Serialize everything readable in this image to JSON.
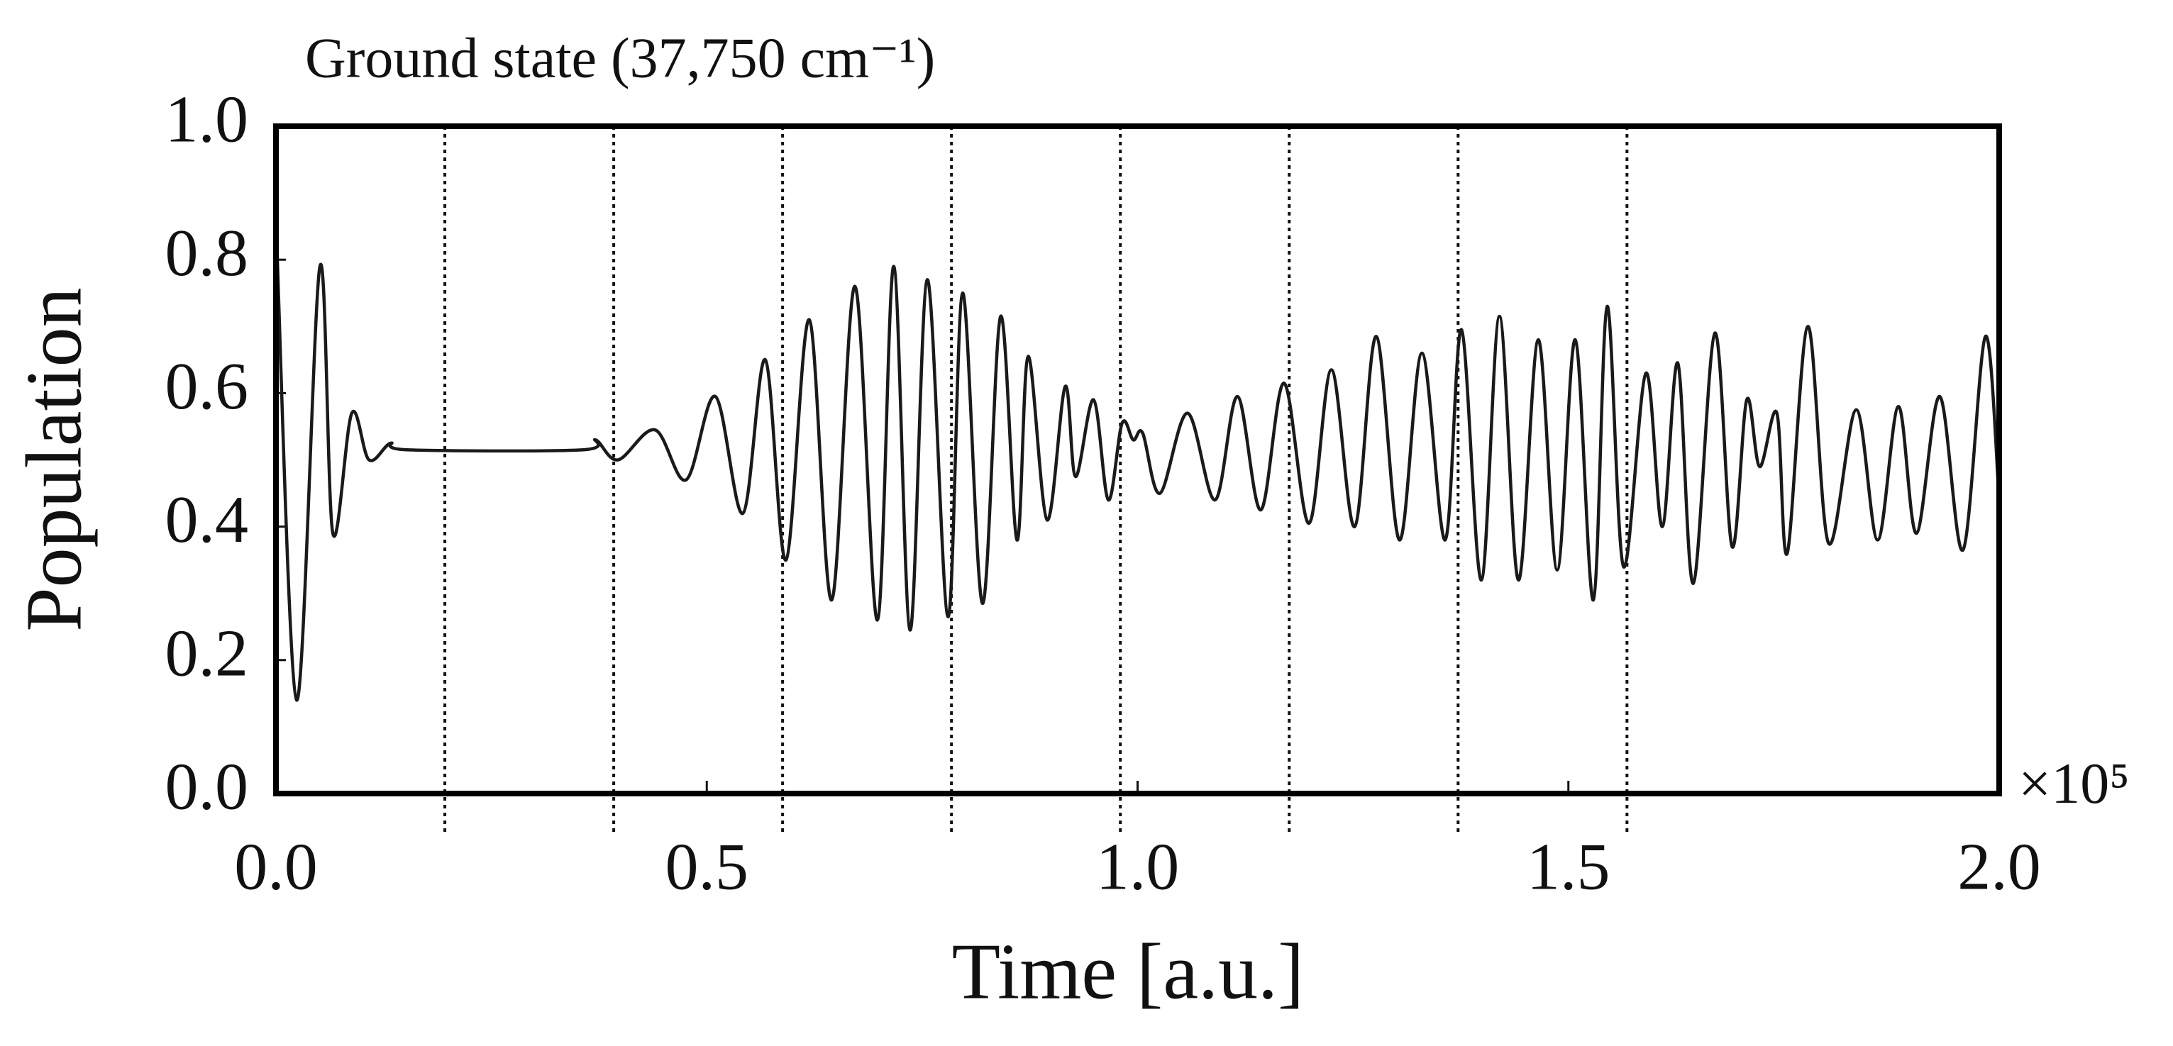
{
  "chart_data": {
    "type": "line",
    "title": "Ground state (37,750 cm⁻¹)",
    "xlabel": "Time [a.u.]",
    "ylabel": "Population",
    "x_multiplier": "×10⁵",
    "color": "#1a1a1a",
    "x": [
      0,
      0.024,
      0.051,
      0.066,
      0.088,
      0.108,
      0.133,
      0.154,
      0.355,
      0.371,
      0.397,
      0.44,
      0.476,
      0.51,
      0.542,
      0.568,
      0.592,
      0.619,
      0.645,
      0.672,
      0.698,
      0.717,
      0.736,
      0.756,
      0.78,
      0.797,
      0.82,
      0.841,
      0.86,
      0.873,
      0.895,
      0.916,
      0.928,
      0.949,
      0.966,
      0.982,
      0.995,
      1.006,
      1.026,
      1.058,
      1.09,
      1.116,
      1.143,
      1.17,
      1.199,
      1.225,
      1.252,
      1.277,
      1.304,
      1.33,
      1.357,
      1.376,
      1.399,
      1.42,
      1.442,
      1.465,
      1.487,
      1.508,
      1.529,
      1.545,
      1.564,
      1.59,
      1.609,
      1.627,
      1.645,
      1.67,
      1.69,
      1.707,
      1.722,
      1.742,
      1.754,
      1.778,
      1.802,
      1.834,
      1.859,
      1.883,
      1.904,
      1.931,
      1.958,
      1.984,
      2.0
    ],
    "values": [
      0.857,
      0.14,
      0.79,
      0.39,
      0.57,
      0.5,
      0.525,
      0.515,
      0.515,
      0.53,
      0.5,
      0.545,
      0.47,
      0.595,
      0.42,
      0.65,
      0.35,
      0.71,
      0.29,
      0.76,
      0.26,
      0.79,
      0.245,
      0.77,
      0.265,
      0.75,
      0.285,
      0.715,
      0.38,
      0.655,
      0.41,
      0.61,
      0.475,
      0.59,
      0.44,
      0.555,
      0.53,
      0.54,
      0.45,
      0.57,
      0.44,
      0.595,
      0.425,
      0.615,
      0.405,
      0.635,
      0.4,
      0.685,
      0.38,
      0.66,
      0.38,
      0.695,
      0.32,
      0.715,
      0.32,
      0.68,
      0.335,
      0.68,
      0.29,
      0.73,
      0.34,
      0.63,
      0.4,
      0.645,
      0.315,
      0.69,
      0.37,
      0.59,
      0.49,
      0.57,
      0.36,
      0.7,
      0.375,
      0.575,
      0.38,
      0.58,
      0.39,
      0.595,
      0.365,
      0.685,
      0.44
    ],
    "vlines": [
      0.196,
      0.392,
      0.588,
      0.784,
      0.98,
      1.176,
      1.372,
      1.568
    ],
    "xlim": [
      0,
      2.0
    ],
    "ylim": [
      0,
      1.0
    ],
    "xticks": [
      {
        "value": 0,
        "label": "0.0"
      },
      0.5,
      {
        "value": 1,
        "label": "1.0"
      },
      1.5,
      {
        "value": 2,
        "label": "2.0"
      }
    ],
    "yticks": [
      {
        "value": 0,
        "label": "0.0"
      },
      0.2,
      0.4,
      0.6,
      0.8,
      {
        "value": 1,
        "label": "1.0"
      }
    ]
  }
}
